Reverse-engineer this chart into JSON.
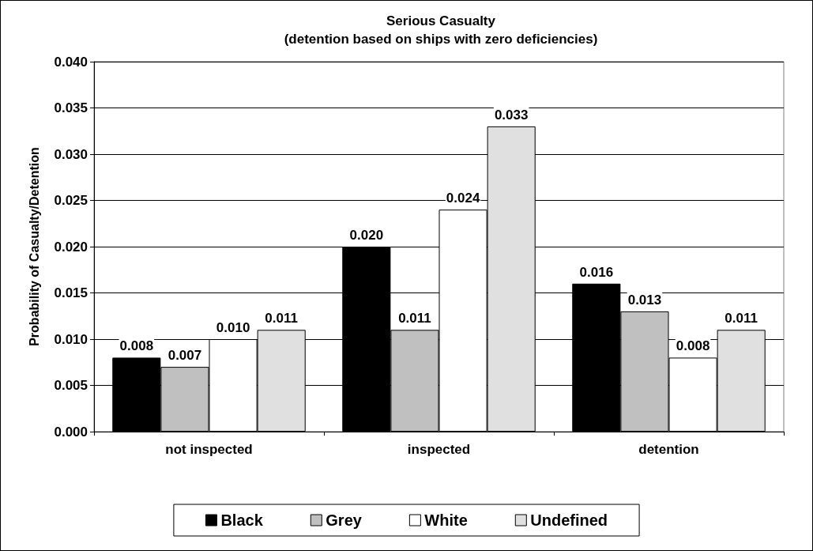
{
  "chart_data": {
    "type": "bar",
    "title": "Serious Casualty",
    "subtitle": "(detention based on ships with zero deficiencies)",
    "ylabel": "Probability of Casualty/Detention",
    "categories": [
      "not inspected",
      "inspected",
      "detention"
    ],
    "series": [
      {
        "name": "Black",
        "color": "#000000",
        "values": [
          0.008,
          0.02,
          0.016
        ],
        "value_labels": [
          "0.008",
          "0.020",
          "0.016"
        ]
      },
      {
        "name": "Grey",
        "color": "#c0c0c0",
        "values": [
          0.007,
          0.011,
          0.013
        ],
        "value_labels": [
          "0.007",
          "0.011",
          "0.013"
        ]
      },
      {
        "name": "White",
        "color": "#ffffff",
        "values": [
          0.01,
          0.024,
          0.008
        ],
        "value_labels": [
          "0.010",
          "0.024",
          "0.008"
        ]
      },
      {
        "name": "Undefined",
        "color": "#e0e0e0",
        "values": [
          0.011,
          0.033,
          0.011
        ],
        "value_labels": [
          "0.011",
          "0.033",
          "0.011"
        ]
      }
    ],
    "ylim": [
      0,
      0.04
    ],
    "yticks": [
      {
        "value": 0,
        "label": "0.000"
      },
      {
        "value": 0.005,
        "label": "0.005"
      },
      {
        "value": 0.01,
        "label": "0.010"
      },
      {
        "value": 0.015,
        "label": "0.015"
      },
      {
        "value": 0.02,
        "label": "0.020"
      },
      {
        "value": 0.025,
        "label": "0.025"
      },
      {
        "value": 0.03,
        "label": "0.030"
      },
      {
        "value": 0.035,
        "label": "0.035"
      },
      {
        "value": 0.04,
        "label": "0.040"
      }
    ],
    "grid": "y",
    "legend": "bottom"
  }
}
